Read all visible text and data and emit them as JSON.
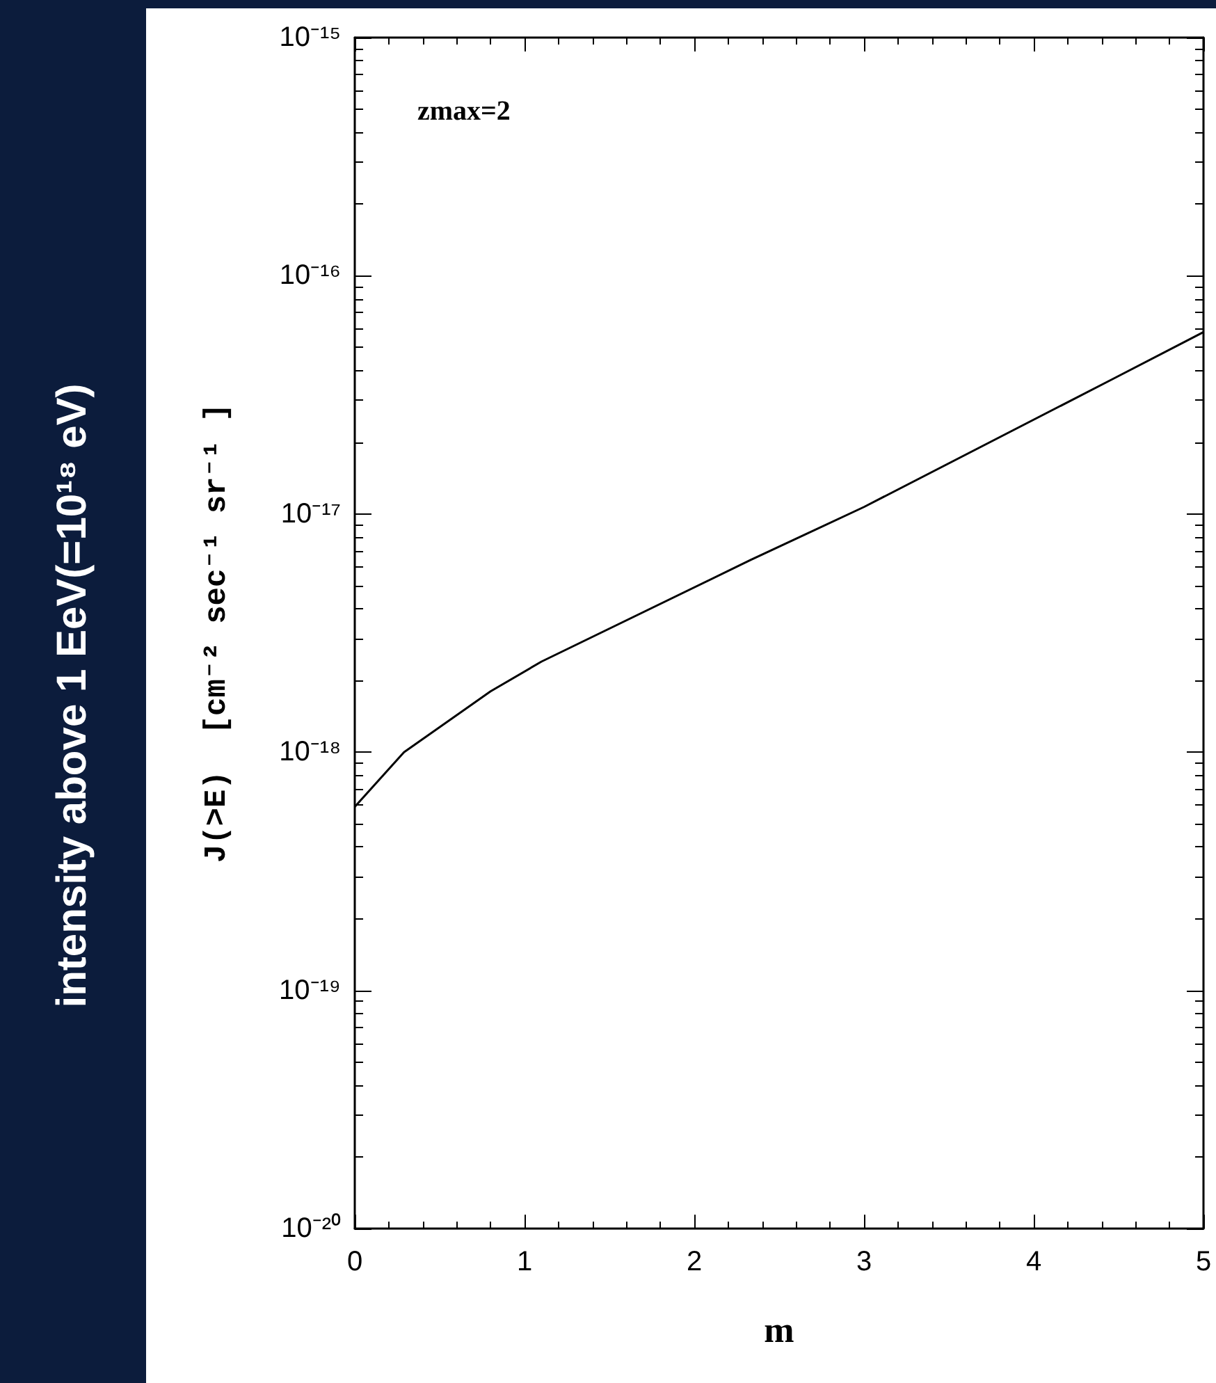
{
  "chart_data": {
    "type": "line",
    "xlabel": "m",
    "ylabel": "J(>E)  [cm⁻² sec⁻¹ sr⁻¹ ]",
    "annotations": [
      "zmax=2",
      "intensity above 1 EeV(=10¹⁸ eV)"
    ],
    "series": [
      {
        "color": "#000000",
        "x": [
          0,
          0.29,
          0.8,
          1.1,
          2.33,
          3.0,
          4.47,
          5.0
        ],
        "values": [
          5.9e-19,
          1e-18,
          1.8e-18,
          2.4e-18,
          6.4e-18,
          1.07e-17,
          3.7e-17,
          5.8e-17
        ]
      }
    ],
    "xlim": [
      0,
      5
    ],
    "xticks": [
      0,
      1,
      2,
      3,
      4,
      5
    ],
    "ylim": [
      1e-20,
      1e-15
    ],
    "log": "y",
    "yticks": [
      {
        "value": 1e-20,
        "label": "10⁻²⁰"
      },
      {
        "value": 1e-19,
        "label": "10⁻¹⁹"
      },
      {
        "value": 1e-18,
        "label": "10⁻¹⁸"
      },
      {
        "value": 1e-17,
        "label": "10⁻¹⁷"
      },
      {
        "value": 1e-16,
        "label": "10⁻¹⁶"
      },
      {
        "value": 1e-15,
        "label": "10⁻¹⁵"
      }
    ],
    "grid": false,
    "marker": "none",
    "line_style": "solid"
  }
}
